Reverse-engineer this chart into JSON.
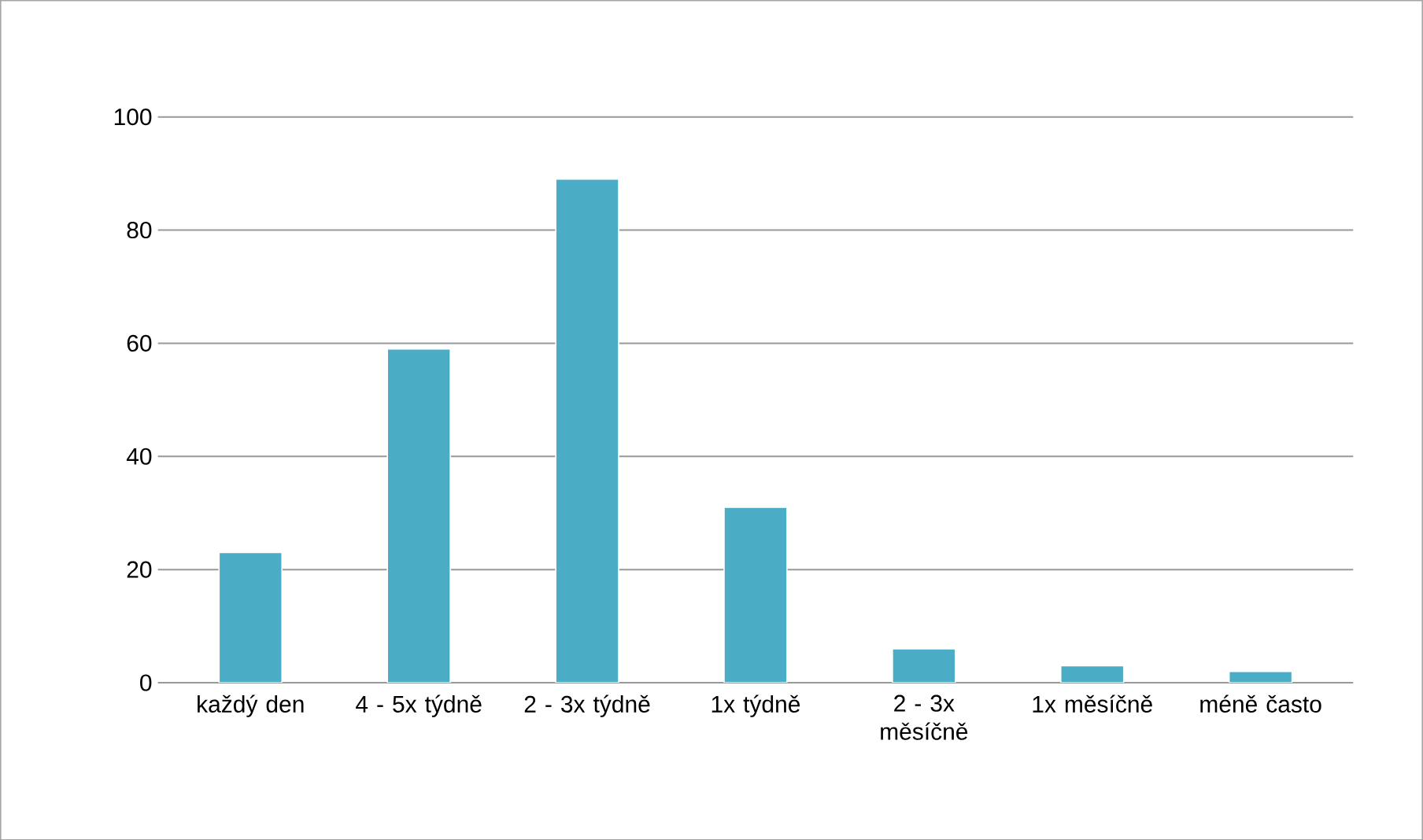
{
  "chart_data": {
    "type": "bar",
    "categories": [
      "každý den",
      "4 - 5x týdně",
      "2 - 3x týdně",
      "1x týdně",
      "2 - 3x měsíčně",
      "1x měsíčně",
      "méně často"
    ],
    "values": [
      23,
      59,
      89,
      31,
      6,
      3,
      2
    ],
    "color": "#4bacc6",
    "ylim": [
      0,
      100
    ],
    "yticks": [
      0,
      20,
      40,
      60,
      80,
      100
    ],
    "grid": "y"
  }
}
